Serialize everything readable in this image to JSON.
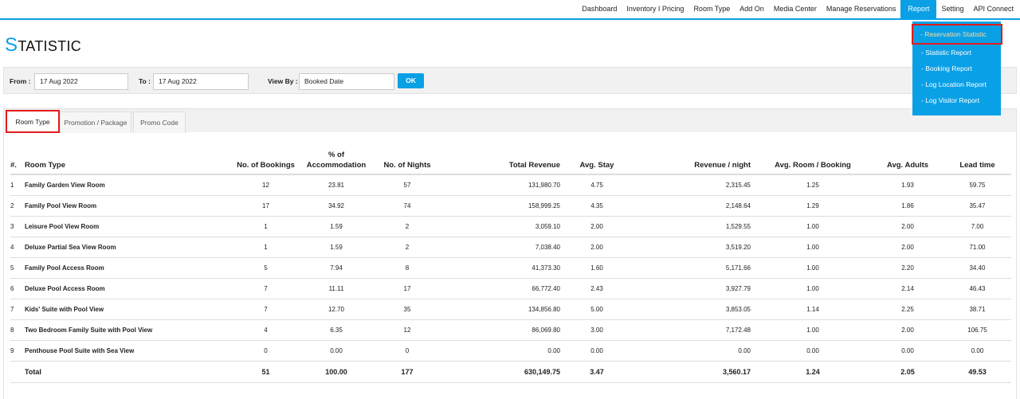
{
  "nav": {
    "items": [
      "Dashboard",
      "Inventory I Pricing",
      "Room Type",
      "Add On",
      "Media Center",
      "Manage Reservations",
      "Report",
      "Setting",
      "API Connect"
    ],
    "active": 6
  },
  "dropdown": {
    "items": [
      "- Reservation Statistic",
      "- Statistic Report",
      "- Booking Report",
      "- Log Location Report",
      "- Log Visitor Report"
    ],
    "selected": 0
  },
  "header": {
    "title": "STATISTIC"
  },
  "filters": {
    "from_label": "From :",
    "from_value": "17 Aug 2022",
    "to_label": "To :",
    "to_value": "17 Aug 2022",
    "view_by_label": "View By :",
    "view_by_value": "Booked Date",
    "ok": "OK"
  },
  "tabs": {
    "items": [
      "Room Type",
      "Promotion / Package",
      "Promo Code"
    ],
    "active": 0
  },
  "table": {
    "headers": [
      "#.",
      "Room Type",
      "No. of Bookings",
      "% of Accommodation",
      "No. of Nights",
      "Total Revenue",
      "Avg. Stay",
      "Revenue / night",
      "Avg. Room / Booking",
      "Avg. Adults",
      "Lead time"
    ],
    "rows": [
      [
        "1",
        "Family Garden View Room",
        "12",
        "23.81",
        "57",
        "131,980.70",
        "4.75",
        "2,315.45",
        "1.25",
        "1.93",
        "59.75"
      ],
      [
        "2",
        "Family Pool View Room",
        "17",
        "34.92",
        "74",
        "158,999.25",
        "4.35",
        "2,148.64",
        "1.29",
        "1.86",
        "35.47"
      ],
      [
        "3",
        "Leisure Pool View Room",
        "1",
        "1.59",
        "2",
        "3,059.10",
        "2.00",
        "1,529.55",
        "1.00",
        "2.00",
        "7.00"
      ],
      [
        "4",
        "Deluxe Partial Sea View Room",
        "1",
        "1.59",
        "2",
        "7,038.40",
        "2.00",
        "3,519.20",
        "1.00",
        "2.00",
        "71.00"
      ],
      [
        "5",
        "Family Pool Access Room",
        "5",
        "7.94",
        "8",
        "41,373.30",
        "1.60",
        "5,171.66",
        "1.00",
        "2.20",
        "34.40"
      ],
      [
        "6",
        "Deluxe Pool Access Room",
        "7",
        "11.11",
        "17",
        "66,772.40",
        "2.43",
        "3,927.79",
        "1.00",
        "2.14",
        "46.43"
      ],
      [
        "7",
        "Kids' Suite with Pool View",
        "7",
        "12.70",
        "35",
        "134,856.80",
        "5.00",
        "3,853.05",
        "1.14",
        "2.25",
        "38.71"
      ],
      [
        "8",
        "Two Bedroom Family Suite with Pool View",
        "4",
        "6.35",
        "12",
        "86,069.80",
        "3.00",
        "7,172.48",
        "1.00",
        "2.00",
        "106.75"
      ],
      [
        "9",
        "Penthouse Pool Suite with Sea View",
        "0",
        "0.00",
        "0",
        "0.00",
        "0.00",
        "0.00",
        "0.00",
        "0.00",
        "0.00"
      ]
    ],
    "total": [
      "Total",
      "51",
      "100.00",
      "177",
      "630,149.75",
      "3.47",
      "3,560.17",
      "1.24",
      "2.05",
      "49.53"
    ]
  }
}
